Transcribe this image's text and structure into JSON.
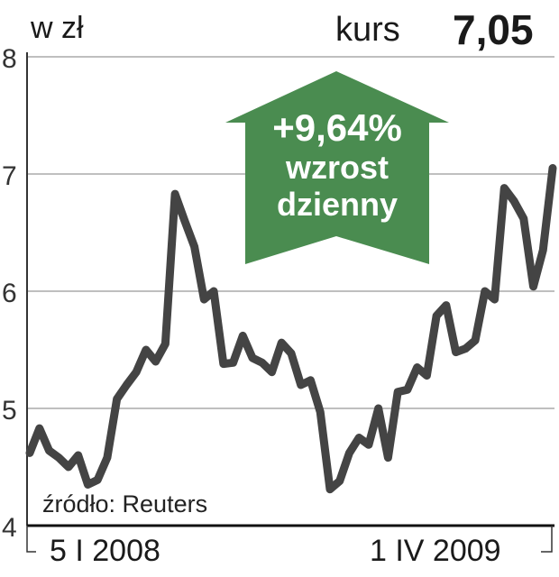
{
  "header": {
    "unit": "w zł",
    "price_label": "kurs",
    "price_value": "7,05"
  },
  "badge": {
    "change": "+9,64%",
    "line1": "wzrost",
    "line2": "dzienny",
    "color": "#4a8c50",
    "icon": "arrow-up-icon"
  },
  "source": "źródło: Reuters",
  "chart_data": {
    "type": "line",
    "title": "",
    "xlabel": "",
    "ylabel": "w zł",
    "ylim": [
      4,
      8
    ],
    "yticks": [
      "4",
      "5",
      "6",
      "7",
      "8"
    ],
    "xtick_labels": [
      "5 I 2008",
      "1 IV 2009"
    ],
    "grid": true,
    "line_color": "#444444",
    "values": [
      4.62,
      4.83,
      4.64,
      4.58,
      4.5,
      4.6,
      4.35,
      4.39,
      4.58,
      5.08,
      5.2,
      5.31,
      5.5,
      5.4,
      5.55,
      6.83,
      6.6,
      6.38,
      5.93,
      6.0,
      5.38,
      5.39,
      5.62,
      5.43,
      5.39,
      5.31,
      5.56,
      5.47,
      5.2,
      5.24,
      4.97,
      4.31,
      4.38,
      4.62,
      4.75,
      4.69,
      5.0,
      4.58,
      5.14,
      5.16,
      5.35,
      5.28,
      5.79,
      5.88,
      5.48,
      5.51,
      5.58,
      6.0,
      5.93,
      6.88,
      6.77,
      6.62,
      6.04,
      6.35,
      7.05
    ]
  }
}
